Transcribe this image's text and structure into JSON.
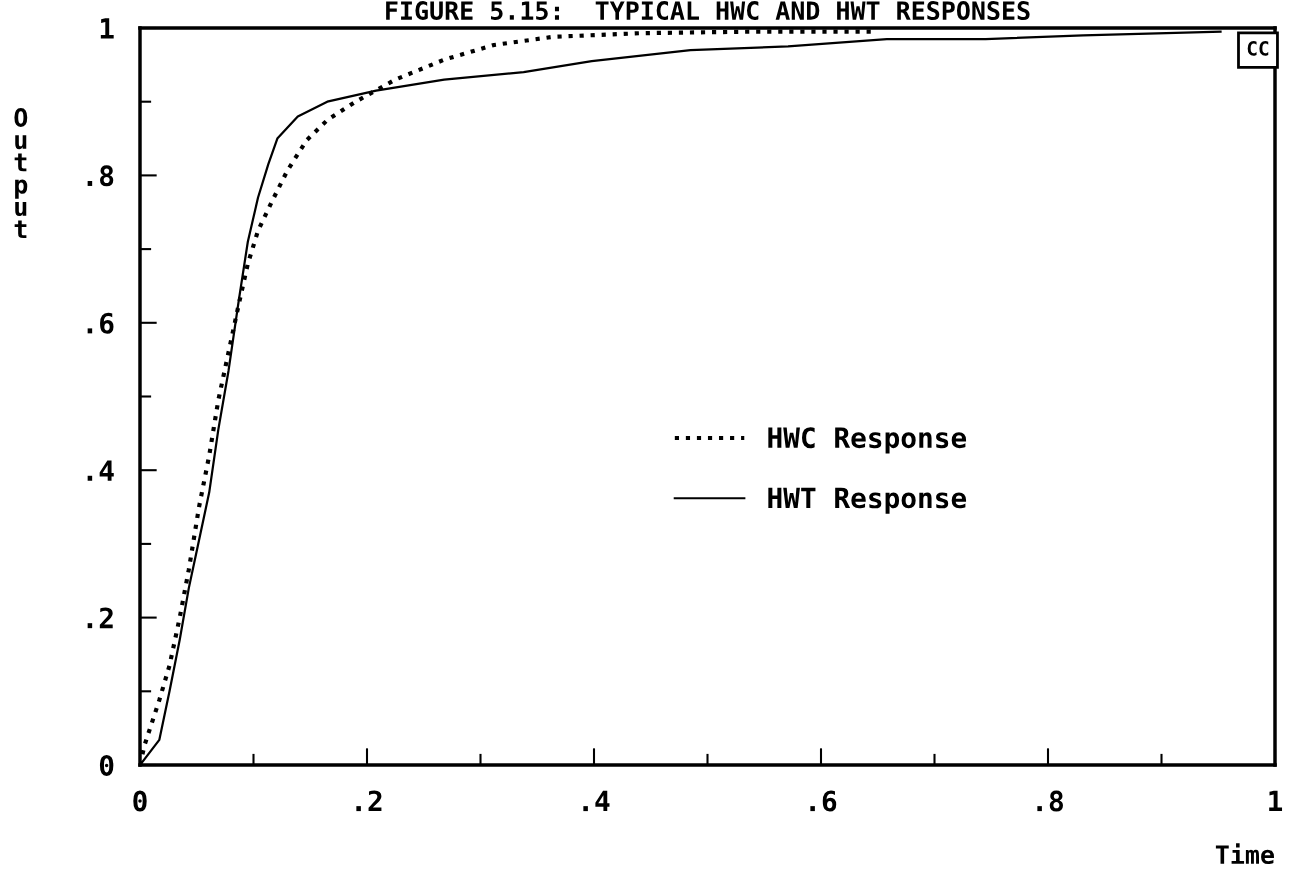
{
  "chart_data": {
    "type": "line",
    "title": "FIGURE 5.15:  TYPICAL HWC AND HWT RESPONSES",
    "xlabel": "Time",
    "ylabel": "O\nu\nt\np\nu\nt",
    "series": [
      {
        "name": "HWC Response",
        "color": "#000000",
        "line_style": "dotted",
        "x": [
          0,
          0.004,
          0.017,
          0.026,
          0.035,
          0.043,
          0.052,
          0.061,
          0.069,
          0.078,
          0.087,
          0.095,
          0.104,
          0.117,
          0.13,
          0.147,
          0.165,
          0.19,
          0.225,
          0.268,
          0.312,
          0.364,
          0.442,
          0.537,
          0.645
        ],
        "values": [
          0,
          0.027,
          0.088,
          0.135,
          0.2,
          0.265,
          0.35,
          0.42,
          0.495,
          0.56,
          0.625,
          0.68,
          0.725,
          0.767,
          0.807,
          0.848,
          0.875,
          0.9,
          0.93,
          0.957,
          0.977,
          0.988,
          0.993,
          0.995,
          0.995
        ]
      },
      {
        "name": "HWT Response",
        "color": "#000000",
        "line_style": "solid",
        "x": [
          0,
          0.017,
          0.026,
          0.035,
          0.043,
          0.052,
          0.061,
          0.069,
          0.078,
          0.087,
          0.095,
          0.104,
          0.113,
          0.121,
          0.139,
          0.165,
          0.208,
          0.268,
          0.338,
          0.398,
          0.485,
          0.571,
          0.658,
          0.745,
          0.831,
          0.952
        ],
        "values": [
          0,
          0.034,
          0.1,
          0.17,
          0.24,
          0.305,
          0.37,
          0.455,
          0.535,
          0.63,
          0.71,
          0.77,
          0.815,
          0.85,
          0.88,
          0.9,
          0.915,
          0.93,
          0.94,
          0.955,
          0.97,
          0.975,
          0.985,
          0.985,
          0.99,
          0.995
        ]
      }
    ],
    "xlim": [
      0,
      1
    ],
    "ylim": [
      0,
      1
    ],
    "xticks": [
      {
        "value": 0,
        "label": "0"
      },
      {
        "value": 0.1,
        "label": null
      },
      {
        "value": 0.2,
        "label": ".2"
      },
      {
        "value": 0.3,
        "label": null
      },
      {
        "value": 0.4,
        "label": ".4"
      },
      {
        "value": 0.5,
        "label": null
      },
      {
        "value": 0.6,
        "label": ".6"
      },
      {
        "value": 0.7,
        "label": null
      },
      {
        "value": 0.8,
        "label": ".8"
      },
      {
        "value": 0.9,
        "label": null
      },
      {
        "value": 1,
        "label": "1"
      }
    ],
    "yticks": [
      {
        "value": 0,
        "label": "0"
      },
      {
        "value": 0.1,
        "label": null
      },
      {
        "value": 0.2,
        "label": ".2"
      },
      {
        "value": 0.3,
        "label": null
      },
      {
        "value": 0.4,
        "label": ".4"
      },
      {
        "value": 0.5,
        "label": null
      },
      {
        "value": 0.6,
        "label": ".6"
      },
      {
        "value": 0.7,
        "label": null
      },
      {
        "value": 0.8,
        "label": ".8"
      },
      {
        "value": 0.9,
        "label": null
      },
      {
        "value": 1,
        "label": "1"
      }
    ],
    "annotations": [
      "CC"
    ],
    "legend": "center",
    "grid": false
  }
}
